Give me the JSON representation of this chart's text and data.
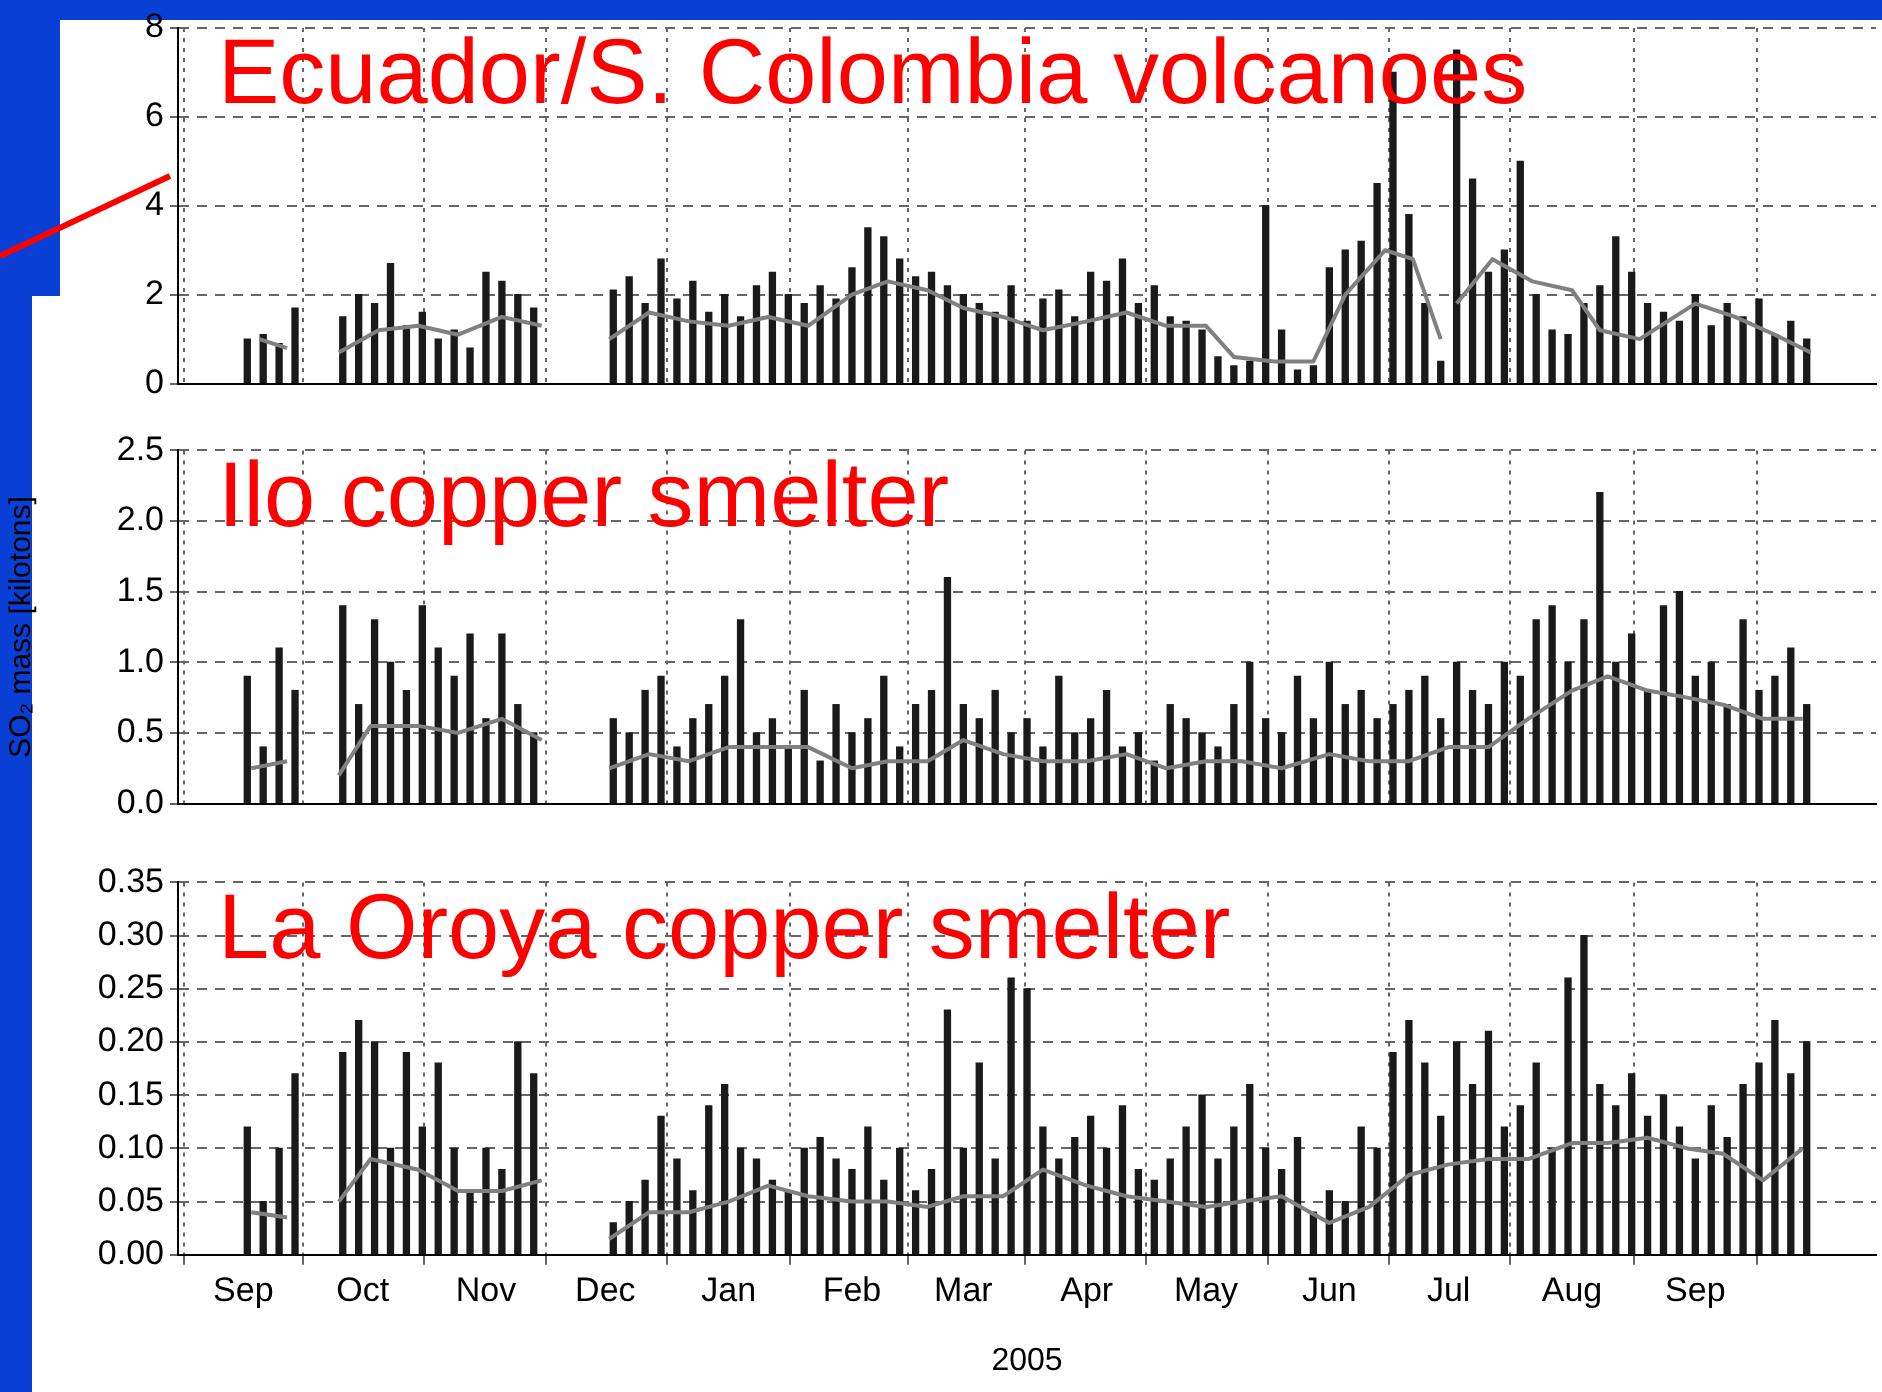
{
  "chart_data": [
    {
      "type": "bar",
      "title": "Ecuador/S. Colombia volcanoes",
      "xlim": [
        "2004-09-01",
        "2005-09-30"
      ],
      "xticks": [
        {
          "value": "2004-09-01",
          "label": null
        },
        {
          "value": "2004-10-01",
          "label": null
        },
        {
          "value": "2004-11-01",
          "label": null
        },
        {
          "value": "2004-12-01",
          "label": null
        },
        {
          "value": "2005-01-01",
          "label": null
        },
        {
          "value": "2005-02-01",
          "label": null
        },
        {
          "value": "2005-03-01",
          "label": null
        },
        {
          "value": "2005-04-01",
          "label": null
        },
        {
          "value": "2005-05-01",
          "label": null
        },
        {
          "value": "2005-06-01",
          "label": null
        },
        {
          "value": "2005-07-01",
          "label": null
        },
        {
          "value": "2005-08-01",
          "label": null
        },
        {
          "value": "2005-09-01",
          "label": null
        }
      ],
      "ylim": [
        0,
        8
      ],
      "yticks": [
        0,
        2,
        4,
        6,
        8
      ],
      "grid": true,
      "tick_labels": "y",
      "series": [
        {
          "color": "#1a1a1a",
          "x": [
            "2004-09-02",
            "2004-09-06",
            "2004-09-10",
            "2004-09-14",
            "2004-09-26",
            "2004-09-30",
            "2004-10-04",
            "2004-10-08",
            "2004-10-12",
            "2004-10-16",
            "2004-10-20",
            "2004-10-24",
            "2004-10-28",
            "2004-11-01",
            "2004-11-05",
            "2004-11-09",
            "2004-11-13",
            "2004-12-03",
            "2004-12-07",
            "2004-12-11",
            "2004-12-15",
            "2004-12-19",
            "2004-12-23",
            "2004-12-27",
            "2004-12-31",
            "2005-01-04",
            "2005-01-08",
            "2005-01-12",
            "2005-01-16",
            "2005-01-20",
            "2005-01-24",
            "2005-01-28",
            "2005-02-01",
            "2005-02-05",
            "2005-02-09",
            "2005-02-13",
            "2005-02-17",
            "2005-02-21",
            "2005-02-25",
            "2005-03-01",
            "2005-03-05",
            "2005-03-09",
            "2005-03-13",
            "2005-03-17",
            "2005-03-21",
            "2005-03-25",
            "2005-03-29",
            "2005-04-02",
            "2005-04-06",
            "2005-04-10",
            "2005-04-14",
            "2005-04-18",
            "2005-04-22",
            "2005-04-26",
            "2005-04-30",
            "2005-05-04",
            "2005-05-08",
            "2005-05-12",
            "2005-05-16",
            "2005-05-20",
            "2005-05-24",
            "2005-05-28",
            "2005-06-01",
            "2005-06-05",
            "2005-06-09",
            "2005-06-13",
            "2005-06-17",
            "2005-06-21",
            "2005-06-25",
            "2005-06-29",
            "2005-07-03",
            "2005-07-07",
            "2005-07-11",
            "2005-07-15",
            "2005-07-19",
            "2005-07-23",
            "2005-07-27",
            "2005-07-31",
            "2005-08-04",
            "2005-08-08",
            "2005-08-12",
            "2005-08-16",
            "2005-08-20",
            "2005-08-24",
            "2005-08-28",
            "2005-09-01",
            "2005-09-05",
            "2005-09-09",
            "2005-09-13",
            "2005-09-17",
            "2005-09-21",
            "2005-09-25",
            "2005-09-29"
          ],
          "values": [
            1.0,
            1.1,
            0.9,
            1.7,
            1.5,
            2.0,
            1.8,
            2.7,
            1.3,
            1.6,
            1.0,
            1.2,
            0.8,
            2.5,
            2.3,
            2.0,
            1.7,
            2.1,
            2.4,
            1.8,
            2.8,
            1.9,
            2.3,
            1.6,
            2.0,
            1.5,
            2.2,
            2.5,
            2.0,
            1.8,
            2.2,
            1.9,
            2.6,
            3.5,
            3.3,
            2.8,
            2.4,
            2.5,
            2.2,
            2.0,
            1.8,
            1.6,
            2.2,
            1.4,
            1.9,
            2.1,
            1.5,
            2.5,
            2.3,
            2.8,
            1.8,
            2.2,
            1.5,
            1.4,
            1.2,
            0.6,
            0.4,
            0.5,
            4.0,
            1.2,
            0.3,
            0.4,
            2.6,
            3.0,
            3.2,
            4.5,
            7.0,
            3.8,
            1.8,
            0.5,
            7.5,
            4.6,
            2.5,
            3.0,
            5.0,
            2.0,
            1.2,
            1.1,
            1.8,
            2.2,
            3.3,
            2.5,
            1.8,
            1.6,
            1.4,
            2.0,
            1.3,
            1.8,
            1.5,
            1.9,
            1.1,
            1.4,
            1.0
          ]
        },
        {
          "type": "line",
          "color": "#808080",
          "x": [
            "2004-09-05",
            "2004-09-12",
            "2004-09-18",
            "2004-09-25",
            "2004-10-05",
            "2004-10-15",
            "2004-10-25",
            "2004-11-05",
            "2004-11-15",
            "2004-11-25",
            "2004-12-02",
            "2004-12-12",
            "2004-12-22",
            "2005-01-01",
            "2005-01-11",
            "2005-01-21",
            "2005-02-01",
            "2005-02-10",
            "2005-02-20",
            "2005-03-01",
            "2005-03-11",
            "2005-03-21",
            "2005-04-01",
            "2005-04-11",
            "2005-04-21",
            "2005-05-01",
            "2005-05-08",
            "2005-05-18",
            "2005-05-28",
            "2005-06-05",
            "2005-06-15",
            "2005-06-22",
            "2005-06-29",
            "2005-07-01",
            "2005-07-03",
            "2005-07-12",
            "2005-07-22",
            "2005-08-01",
            "2005-08-08",
            "2005-08-18",
            "2005-09-01",
            "2005-09-11",
            "2005-09-21",
            "2005-09-30"
          ],
          "values": [
            1.0,
            0.8,
            null,
            0.7,
            1.2,
            1.3,
            1.1,
            1.5,
            1.3,
            null,
            1.0,
            1.6,
            1.4,
            1.3,
            1.5,
            1.3,
            2.0,
            2.3,
            2.1,
            1.7,
            1.5,
            1.2,
            1.4,
            1.6,
            1.3,
            1.3,
            0.6,
            0.5,
            0.5,
            2.0,
            3.0,
            2.8,
            1.0,
            null,
            1.8,
            2.8,
            2.3,
            2.1,
            1.2,
            1.0,
            1.8,
            1.5,
            1.1,
            0.7
          ]
        }
      ]
    },
    {
      "type": "bar",
      "title": "Ilo copper smelter",
      "ylabel": "SO₂ mass [kilotons]",
      "xlim": [
        "2004-09-01",
        "2005-09-30"
      ],
      "xticks": [
        {
          "value": "2004-09-01",
          "label": null
        },
        {
          "value": "2004-10-01",
          "label": null
        },
        {
          "value": "2004-11-01",
          "label": null
        },
        {
          "value": "2004-12-01",
          "label": null
        },
        {
          "value": "2005-01-01",
          "label": null
        },
        {
          "value": "2005-02-01",
          "label": null
        },
        {
          "value": "2005-03-01",
          "label": null
        },
        {
          "value": "2005-04-01",
          "label": null
        },
        {
          "value": "2005-05-01",
          "label": null
        },
        {
          "value": "2005-06-01",
          "label": null
        },
        {
          "value": "2005-07-01",
          "label": null
        },
        {
          "value": "2005-08-01",
          "label": null
        },
        {
          "value": "2005-09-01",
          "label": null
        }
      ],
      "ylim": [
        0,
        2.5
      ],
      "yticks": [
        {
          "value": 0,
          "label": "0.0"
        },
        0.5,
        {
          "value": 1,
          "label": "1.0"
        },
        1.5,
        {
          "value": 2,
          "label": "2.0"
        },
        2.5
      ],
      "grid": true,
      "tick_labels": "y",
      "series": [
        {
          "color": "#1a1a1a",
          "x": [
            "2004-09-02",
            "2004-09-06",
            "2004-09-10",
            "2004-09-14",
            "2004-09-26",
            "2004-09-30",
            "2004-10-04",
            "2004-10-08",
            "2004-10-12",
            "2004-10-16",
            "2004-10-20",
            "2004-10-24",
            "2004-10-28",
            "2004-11-01",
            "2004-11-05",
            "2004-11-09",
            "2004-11-13",
            "2004-12-03",
            "2004-12-07",
            "2004-12-11",
            "2004-12-15",
            "2004-12-19",
            "2004-12-23",
            "2004-12-27",
            "2004-12-31",
            "2005-01-04",
            "2005-01-08",
            "2005-01-12",
            "2005-01-16",
            "2005-01-20",
            "2005-01-24",
            "2005-01-28",
            "2005-02-01",
            "2005-02-05",
            "2005-02-09",
            "2005-02-13",
            "2005-02-17",
            "2005-02-21",
            "2005-02-25",
            "2005-03-01",
            "2005-03-05",
            "2005-03-09",
            "2005-03-13",
            "2005-03-17",
            "2005-03-21",
            "2005-03-25",
            "2005-03-29",
            "2005-04-02",
            "2005-04-06",
            "2005-04-10",
            "2005-04-14",
            "2005-04-18",
            "2005-04-22",
            "2005-04-26",
            "2005-04-30",
            "2005-05-04",
            "2005-05-08",
            "2005-05-12",
            "2005-05-16",
            "2005-05-20",
            "2005-05-24",
            "2005-05-28",
            "2005-06-01",
            "2005-06-05",
            "2005-06-09",
            "2005-06-13",
            "2005-06-17",
            "2005-06-21",
            "2005-06-25",
            "2005-06-29",
            "2005-07-03",
            "2005-07-07",
            "2005-07-11",
            "2005-07-15",
            "2005-07-19",
            "2005-07-23",
            "2005-07-27",
            "2005-07-31",
            "2005-08-04",
            "2005-08-08",
            "2005-08-12",
            "2005-08-16",
            "2005-08-20",
            "2005-08-24",
            "2005-08-28",
            "2005-09-01",
            "2005-09-05",
            "2005-09-09",
            "2005-09-13",
            "2005-09-17",
            "2005-09-21",
            "2005-09-25",
            "2005-09-29"
          ],
          "values": [
            0.9,
            0.4,
            1.1,
            0.8,
            1.4,
            0.7,
            1.3,
            1.0,
            0.8,
            1.4,
            1.1,
            0.9,
            1.2,
            0.6,
            1.2,
            0.7,
            0.5,
            0.6,
            0.5,
            0.8,
            0.9,
            0.4,
            0.6,
            0.7,
            0.9,
            1.3,
            0.5,
            0.6,
            0.4,
            0.8,
            0.3,
            0.7,
            0.5,
            0.6,
            0.9,
            0.4,
            0.7,
            0.8,
            1.6,
            0.7,
            0.6,
            0.8,
            0.5,
            0.6,
            0.4,
            0.9,
            0.5,
            0.6,
            0.8,
            0.4,
            0.5,
            0.3,
            0.7,
            0.6,
            0.5,
            0.4,
            0.7,
            1.0,
            0.6,
            0.5,
            0.9,
            0.6,
            1.0,
            0.7,
            0.8,
            0.6,
            0.7,
            0.8,
            0.9,
            0.6,
            1.0,
            0.8,
            0.7,
            1.0,
            0.9,
            1.3,
            1.4,
            1.0,
            1.3,
            2.2,
            1.0,
            1.2,
            0.8,
            1.4,
            1.5,
            0.9,
            1.0,
            0.7,
            1.3,
            0.8,
            0.9,
            1.1,
            0.7
          ]
        },
        {
          "type": "line",
          "color": "#808080",
          "x": [
            "2004-09-03",
            "2004-09-12",
            "2004-09-18",
            "2004-09-25",
            "2004-10-03",
            "2004-10-15",
            "2004-10-25",
            "2004-11-05",
            "2004-11-15",
            "2004-11-25",
            "2004-12-02",
            "2004-12-12",
            "2004-12-22",
            "2005-01-01",
            "2005-01-11",
            "2005-01-21",
            "2005-02-01",
            "2005-02-10",
            "2005-02-20",
            "2005-03-01",
            "2005-03-11",
            "2005-03-21",
            "2005-04-01",
            "2005-04-11",
            "2005-04-21",
            "2005-05-01",
            "2005-05-10",
            "2005-05-20",
            "2005-06-01",
            "2005-06-11",
            "2005-06-21",
            "2005-07-01",
            "2005-07-11",
            "2005-07-21",
            "2005-08-01",
            "2005-08-10",
            "2005-08-20",
            "2005-08-30",
            "2005-09-08",
            "2005-09-18",
            "2005-09-28"
          ],
          "values": [
            0.25,
            0.3,
            null,
            0.2,
            0.55,
            0.55,
            0.5,
            0.6,
            0.45,
            null,
            0.25,
            0.35,
            0.3,
            0.4,
            0.4,
            0.4,
            0.25,
            0.3,
            0.3,
            0.45,
            0.35,
            0.3,
            0.3,
            0.35,
            0.25,
            0.3,
            0.3,
            0.25,
            0.35,
            0.3,
            0.3,
            0.4,
            0.4,
            0.6,
            0.8,
            0.9,
            0.8,
            0.75,
            0.7,
            0.6,
            0.6
          ]
        }
      ]
    },
    {
      "type": "bar",
      "title": "La Oroya copper smelter",
      "xlabel": "2005",
      "xlim": [
        "2004-09-01",
        "2005-09-30"
      ],
      "xticks": [
        {
          "value": "2004-09-01",
          "label": "Sep"
        },
        {
          "value": "2004-10-01",
          "label": "Oct"
        },
        {
          "value": "2004-11-01",
          "label": "Nov"
        },
        {
          "value": "2004-12-01",
          "label": "Dec"
        },
        {
          "value": "2005-01-01",
          "label": "Jan"
        },
        {
          "value": "2005-02-01",
          "label": "Feb"
        },
        {
          "value": "2005-03-01",
          "label": "Mar"
        },
        {
          "value": "2005-04-01",
          "label": "Apr"
        },
        {
          "value": "2005-05-01",
          "label": "May"
        },
        {
          "value": "2005-06-01",
          "label": "Jun"
        },
        {
          "value": "2005-07-01",
          "label": "Jul"
        },
        {
          "value": "2005-08-01",
          "label": "Aug"
        },
        {
          "value": "2005-09-01",
          "label": "Sep"
        }
      ],
      "ylim": [
        0,
        0.35
      ],
      "yticks": [
        {
          "value": 0,
          "label": "0.00"
        },
        0.05,
        {
          "value": 0.1,
          "label": "0.10"
        },
        0.15,
        {
          "value": 0.2,
          "label": "0.20"
        },
        0.25,
        {
          "value": 0.3,
          "label": "0.30"
        },
        0.35
      ],
      "grid": true,
      "series": [
        {
          "color": "#1a1a1a",
          "x": [
            "2004-09-02",
            "2004-09-06",
            "2004-09-10",
            "2004-09-14",
            "2004-09-26",
            "2004-09-30",
            "2004-10-04",
            "2004-10-08",
            "2004-10-12",
            "2004-10-16",
            "2004-10-20",
            "2004-10-24",
            "2004-10-28",
            "2004-11-01",
            "2004-11-05",
            "2004-11-09",
            "2004-11-13",
            "2004-12-03",
            "2004-12-07",
            "2004-12-11",
            "2004-12-15",
            "2004-12-19",
            "2004-12-23",
            "2004-12-27",
            "2004-12-31",
            "2005-01-04",
            "2005-01-08",
            "2005-01-12",
            "2005-01-16",
            "2005-01-20",
            "2005-01-24",
            "2005-01-28",
            "2005-02-01",
            "2005-02-05",
            "2005-02-09",
            "2005-02-13",
            "2005-02-17",
            "2005-02-21",
            "2005-02-25",
            "2005-03-01",
            "2005-03-05",
            "2005-03-09",
            "2005-03-13",
            "2005-03-17",
            "2005-03-21",
            "2005-03-25",
            "2005-03-29",
            "2005-04-02",
            "2005-04-06",
            "2005-04-10",
            "2005-04-14",
            "2005-04-18",
            "2005-04-22",
            "2005-04-26",
            "2005-04-30",
            "2005-05-04",
            "2005-05-08",
            "2005-05-12",
            "2005-05-16",
            "2005-05-20",
            "2005-05-24",
            "2005-05-28",
            "2005-06-01",
            "2005-06-05",
            "2005-06-09",
            "2005-06-13",
            "2005-06-17",
            "2005-06-21",
            "2005-06-25",
            "2005-06-29",
            "2005-07-03",
            "2005-07-07",
            "2005-07-11",
            "2005-07-15",
            "2005-07-19",
            "2005-07-23",
            "2005-07-27",
            "2005-07-31",
            "2005-08-04",
            "2005-08-08",
            "2005-08-12",
            "2005-08-16",
            "2005-08-20",
            "2005-08-24",
            "2005-08-28",
            "2005-09-01",
            "2005-09-05",
            "2005-09-09",
            "2005-09-13",
            "2005-09-17",
            "2005-09-21",
            "2005-09-25",
            "2005-09-29"
          ],
          "values": [
            0.12,
            0.05,
            0.1,
            0.17,
            0.19,
            0.22,
            0.2,
            0.1,
            0.19,
            0.12,
            0.18,
            0.1,
            0.06,
            0.1,
            0.08,
            0.2,
            0.17,
            0.03,
            0.05,
            0.07,
            0.13,
            0.09,
            0.06,
            0.14,
            0.16,
            0.1,
            0.09,
            0.07,
            0.06,
            0.1,
            0.11,
            0.09,
            0.08,
            0.12,
            0.07,
            0.1,
            0.06,
            0.08,
            0.23,
            0.1,
            0.18,
            0.09,
            0.26,
            0.25,
            0.12,
            0.09,
            0.11,
            0.13,
            0.1,
            0.14,
            0.08,
            0.07,
            0.09,
            0.12,
            0.15,
            0.09,
            0.12,
            0.16,
            0.1,
            0.08,
            0.11,
            0.04,
            0.06,
            0.05,
            0.12,
            0.1,
            0.19,
            0.22,
            0.18,
            0.13,
            0.2,
            0.16,
            0.21,
            0.12,
            0.14,
            0.18,
            0.1,
            0.26,
            0.3,
            0.16,
            0.14,
            0.17,
            0.13,
            0.15,
            0.12,
            0.09,
            0.14,
            0.11,
            0.16,
            0.18,
            0.22,
            0.17,
            0.2
          ]
        },
        {
          "type": "line",
          "color": "#808080",
          "x": [
            "2004-09-03",
            "2004-09-12",
            "2004-09-18",
            "2004-09-25",
            "2004-10-03",
            "2004-10-15",
            "2004-10-25",
            "2004-11-05",
            "2004-11-15",
            "2004-11-25",
            "2004-12-02",
            "2004-12-12",
            "2004-12-22",
            "2005-01-01",
            "2005-01-11",
            "2005-01-21",
            "2005-02-01",
            "2005-02-10",
            "2005-02-20",
            "2005-03-01",
            "2005-03-11",
            "2005-03-21",
            "2005-04-01",
            "2005-04-11",
            "2005-04-21",
            "2005-05-01",
            "2005-05-10",
            "2005-05-20",
            "2005-06-01",
            "2005-06-11",
            "2005-06-21",
            "2005-07-01",
            "2005-07-11",
            "2005-07-21",
            "2005-08-01",
            "2005-08-10",
            "2005-08-20",
            "2005-08-30",
            "2005-09-08",
            "2005-09-18",
            "2005-09-28"
          ],
          "values": [
            0.04,
            0.035,
            null,
            0.05,
            0.09,
            0.08,
            0.06,
            0.06,
            0.07,
            null,
            0.015,
            0.04,
            0.04,
            0.05,
            0.065,
            0.055,
            0.05,
            0.05,
            0.045,
            0.055,
            0.055,
            0.08,
            0.065,
            0.055,
            0.05,
            0.045,
            0.05,
            0.055,
            0.03,
            0.045,
            0.075,
            0.085,
            0.09,
            0.09,
            0.105,
            0.105,
            0.11,
            0.1,
            0.095,
            0.07,
            0.1
          ]
        }
      ]
    }
  ]
}
